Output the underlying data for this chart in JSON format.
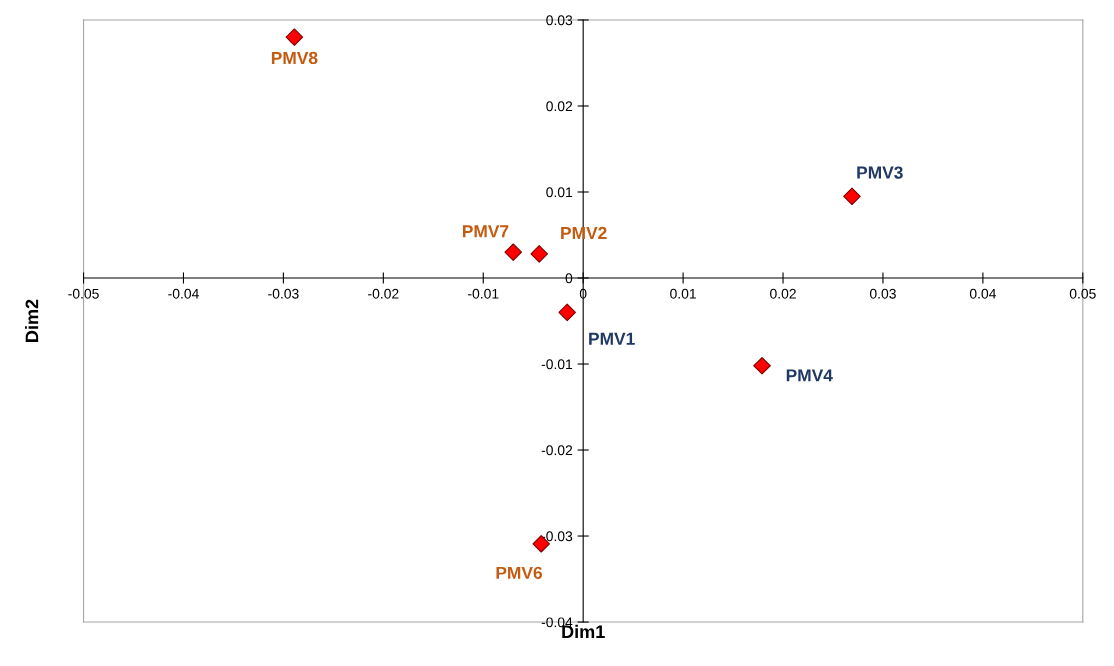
{
  "chart_data": {
    "type": "scatter",
    "xlabel": "Dim1",
    "ylabel": "Dim2",
    "xlim": [
      -0.05,
      0.05
    ],
    "ylim": [
      -0.04,
      0.03
    ],
    "xticks": [
      -0.05,
      -0.04,
      -0.03,
      -0.02,
      -0.01,
      0,
      0.01,
      0.02,
      0.03,
      0.04,
      0.05
    ],
    "yticks": [
      -0.04,
      -0.03,
      -0.02,
      -0.01,
      0,
      0.01,
      0.02,
      0.03
    ],
    "marker": "diamond",
    "grid": false,
    "legend": false,
    "series": [
      {
        "color": "#ff0000",
        "x": [
          -0.0289,
          -0.007,
          -0.0044,
          -0.0042
        ],
        "values": [
          0.028,
          0.003,
          0.0028,
          -0.0309
        ],
        "value_labels": [
          "PMV8",
          "PMV7",
          "PMV2",
          "PMV6"
        ]
      },
      {
        "color": "#ff0000",
        "x": [
          -0.0016,
          0.0269,
          0.0179
        ],
        "values": [
          -0.004,
          0.0095,
          -0.0102
        ],
        "value_labels": [
          "PMV1",
          "PMV3",
          "PMV4"
        ]
      }
    ]
  }
}
